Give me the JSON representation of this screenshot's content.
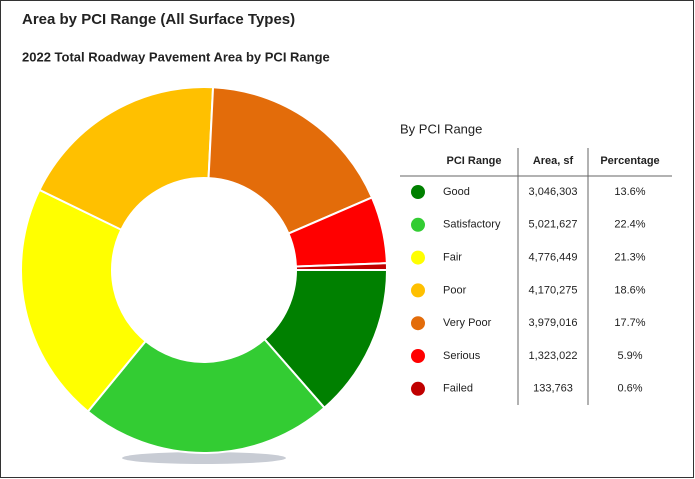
{
  "page_title": "Area by PCI Range (All Surface Types)",
  "chart_data": {
    "type": "pie",
    "donut": true,
    "title": "2022 Total Roadway Pavement Area by PCI Range",
    "legend_title": "By PCI Range",
    "columns": [
      "PCI Range",
      "Area, sf",
      "Percentage"
    ],
    "categories": [
      "Good",
      "Satisfactory",
      "Fair",
      "Poor",
      "Very Poor",
      "Serious",
      "Failed"
    ],
    "values": [
      3046303,
      5021627,
      4776449,
      4170275,
      3979016,
      1323022,
      133763
    ],
    "value_labels": [
      "3,046,303",
      "5,021,627",
      "4,776,449",
      "4,170,275",
      "3,979,016",
      "1,323,022",
      "133,763"
    ],
    "percentages": [
      "13.6%",
      "22.4%",
      "21.3%",
      "18.6%",
      "17.7%",
      "5.9%",
      "0.6%"
    ],
    "colors": [
      "#008000",
      "#33cc33",
      "#ffff00",
      "#ffc000",
      "#e36c0a",
      "#ff0000",
      "#c00000"
    ]
  }
}
